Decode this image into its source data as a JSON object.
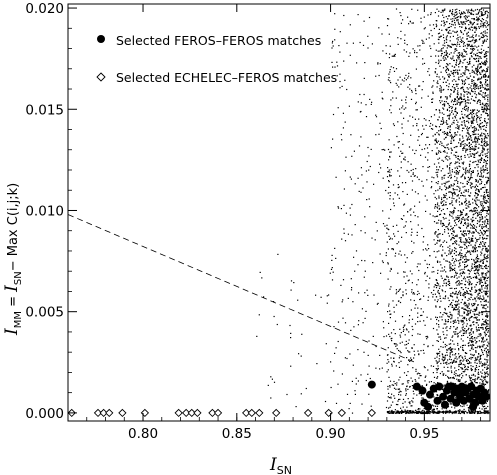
{
  "chart_data": {
    "type": "scatter",
    "xlabel": "I_SN",
    "ylabel": "I_MM = I_SN − Max C(i,j;k)",
    "xlim": [
      0.76,
      0.985
    ],
    "ylim": [
      -0.0004,
      0.0202
    ],
    "x_ticks": [
      0.8,
      0.85,
      0.9,
      0.95
    ],
    "x_tick_labels": [
      "0.80",
      "0.85",
      "0.90",
      "0.95"
    ],
    "y_ticks": [
      0.0,
      0.005,
      0.01,
      0.015,
      0.02
    ],
    "y_tick_labels": [
      "0.000",
      "0.005",
      "0.010",
      "0.015",
      "0.020"
    ],
    "grid": false,
    "legend": {
      "placement": "top-left",
      "entries": [
        {
          "label": "Selected FEROS–FEROS matches",
          "marker": "filled-circle"
        },
        {
          "label": "Selected ECHELEC–FEROS matches",
          "marker": "open-diamond"
        }
      ]
    },
    "reference_line": {
      "style": "dashed",
      "x": [
        0.76,
        0.945
      ],
      "y": [
        0.0098,
        0.0025
      ]
    },
    "series": [
      {
        "name": "Selected FEROS–FEROS matches",
        "marker": "filled-circle",
        "points": [
          [
            0.922,
            0.0014
          ],
          [
            0.946,
            0.0013
          ],
          [
            0.949,
            0.0011
          ],
          [
            0.95,
            0.0005
          ],
          [
            0.952,
            0.0003
          ],
          [
            0.953,
            0.0009
          ],
          [
            0.955,
            0.0012
          ],
          [
            0.957,
            0.0006
          ],
          [
            0.958,
            0.0013
          ],
          [
            0.96,
            0.0008
          ],
          [
            0.961,
            0.0004
          ],
          [
            0.962,
            0.0011
          ],
          [
            0.964,
            0.0007
          ],
          [
            0.965,
            0.0013
          ],
          [
            0.966,
            0.001
          ],
          [
            0.967,
            0.0005
          ],
          [
            0.968,
            0.0012
          ],
          [
            0.969,
            0.0008
          ],
          [
            0.97,
            0.0013
          ],
          [
            0.971,
            0.0006
          ],
          [
            0.972,
            0.001
          ],
          [
            0.973,
            0.0012
          ],
          [
            0.974,
            0.0007
          ],
          [
            0.975,
            0.0013
          ],
          [
            0.976,
            0.0009
          ],
          [
            0.977,
            0.0005
          ],
          [
            0.978,
            0.0011
          ],
          [
            0.979,
            0.0008
          ],
          [
            0.98,
            0.0012
          ],
          [
            0.981,
            0.0006
          ],
          [
            0.982,
            0.001
          ],
          [
            0.983,
            0.0008
          ],
          [
            0.976,
            0.0003
          ],
          [
            0.97,
            0.001
          ],
          [
            0.963,
            0.0013
          ]
        ]
      },
      {
        "name": "Selected ECHELEC–FEROS matches",
        "marker": "open-diamond",
        "points": [
          [
            0.762,
            0.0
          ],
          [
            0.776,
            0.0
          ],
          [
            0.779,
            0.0
          ],
          [
            0.782,
            0.0
          ],
          [
            0.789,
            0.0
          ],
          [
            0.801,
            0.0
          ],
          [
            0.819,
            0.0
          ],
          [
            0.823,
            0.0
          ],
          [
            0.826,
            0.0
          ],
          [
            0.829,
            0.0
          ],
          [
            0.837,
            0.0
          ],
          [
            0.84,
            0.0
          ],
          [
            0.855,
            0.0
          ],
          [
            0.858,
            0.0
          ],
          [
            0.862,
            0.0
          ],
          [
            0.871,
            0.0
          ],
          [
            0.888,
            0.0
          ],
          [
            0.899,
            0.0
          ],
          [
            0.906,
            0.0
          ],
          [
            0.922,
            0.0
          ]
        ]
      },
      {
        "name": "",
        "marker": "dot",
        "points": "dense background cloud: I_SN 0.90–0.985 (densest 0.955–0.985), I_MM 0.000–0.020"
      }
    ]
  }
}
